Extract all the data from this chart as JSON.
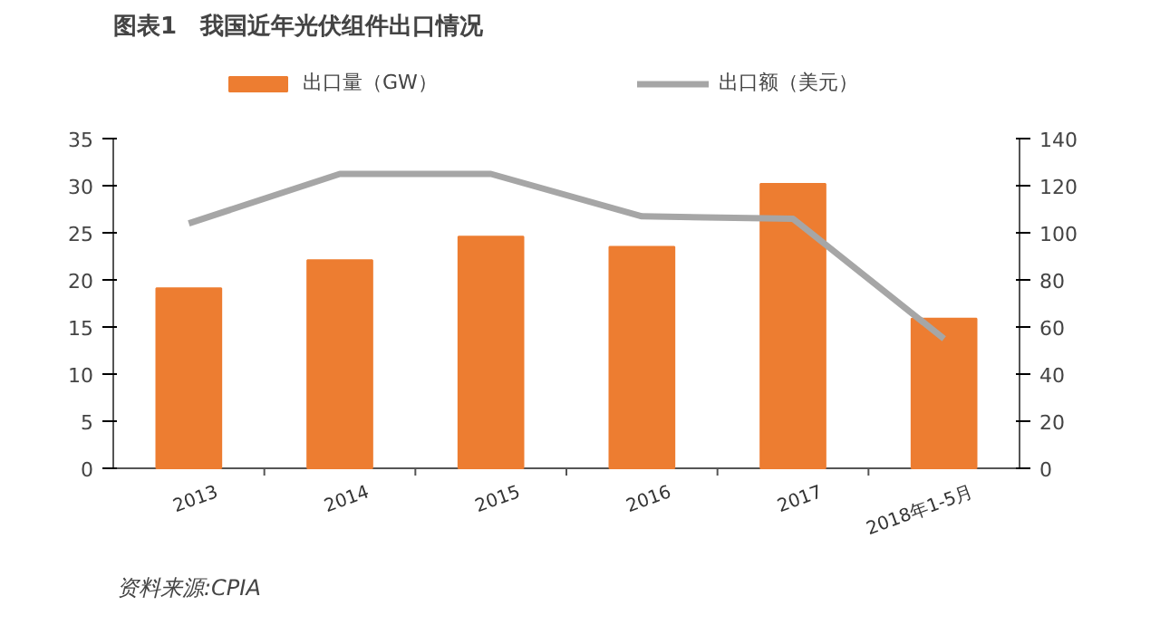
{
  "chart_data": {
    "type": "bar",
    "title": "图表1　我国近年光伏组件出口情况",
    "categories": [
      "2013",
      "2014",
      "2015",
      "2016",
      "2017",
      "2018年1-5月"
    ],
    "series": [
      {
        "name": "出口量（GW）",
        "color": "#ed7d31",
        "values": [
          19.1,
          22.1,
          24.6,
          23.5,
          30.2,
          15.9
        ]
      },
      {
        "name": "出口额（美元）",
        "type": "line",
        "axis": "y2",
        "color": "#a6a6a6",
        "values": [
          104,
          125,
          125,
          107,
          106,
          55
        ]
      }
    ],
    "ylim": [
      0,
      35
    ],
    "yticks": [
      0,
      5,
      10,
      15,
      20,
      25,
      30,
      35
    ],
    "y2lim": [
      0,
      140
    ],
    "y2ticks": [
      0,
      20,
      40,
      60,
      80,
      100,
      120,
      140
    ],
    "grid": false,
    "legend": "top",
    "annotations": [
      "资料来源:CPIA"
    ]
  }
}
